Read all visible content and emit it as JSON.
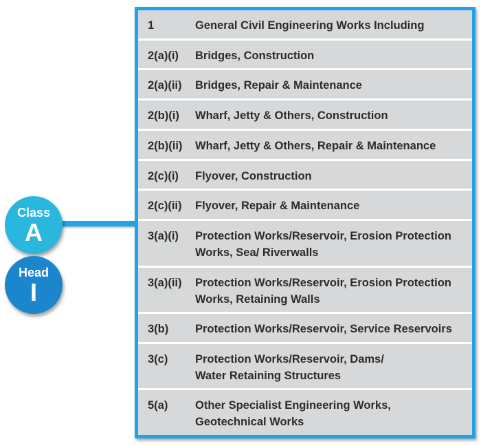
{
  "badges": {
    "class_label": "Class",
    "class_value": "A",
    "head_label": "Head",
    "head_value": "I"
  },
  "colors": {
    "frame": "#1ea4e9",
    "row_bg": "#d7d8da",
    "class_circle": "#2ab7de",
    "head_circle": "#1b86cc"
  },
  "rows": [
    {
      "code": "1",
      "desc": "General Civil Engineering Works Including"
    },
    {
      "code": "2(a)(i)",
      "desc": "Bridges, Construction"
    },
    {
      "code": "2(a)(ii)",
      "desc": "Bridges, Repair & Maintenance"
    },
    {
      "code": "2(b)(i)",
      "desc": "Wharf, Jetty & Others, Construction"
    },
    {
      "code": "2(b)(ii)",
      "desc": "Wharf, Jetty & Others, Repair & Maintenance"
    },
    {
      "code": "2(c)(i)",
      "desc": "Flyover, Construction"
    },
    {
      "code": "2(c)(ii)",
      "desc": "Flyover, Repair & Maintenance"
    },
    {
      "code": "3(a)(i)",
      "desc": "Protection Works/Reservoir, Erosion Protection\nWorks, Sea/ Riverwalls"
    },
    {
      "code": "3(a)(ii)",
      "desc": "Protection Works/Reservoir, Erosion Protection\nWorks, Retaining Walls"
    },
    {
      "code": "3(b)",
      "desc": "Protection Works/Reservoir, Service Reservoirs"
    },
    {
      "code": "3(c)",
      "desc": "Protection Works/Reservoir, Dams/\nWater Retaining Structures"
    },
    {
      "code": "5(a)",
      "desc": "Other Specialist Engineering Works,\nGeotechnical Works"
    }
  ]
}
